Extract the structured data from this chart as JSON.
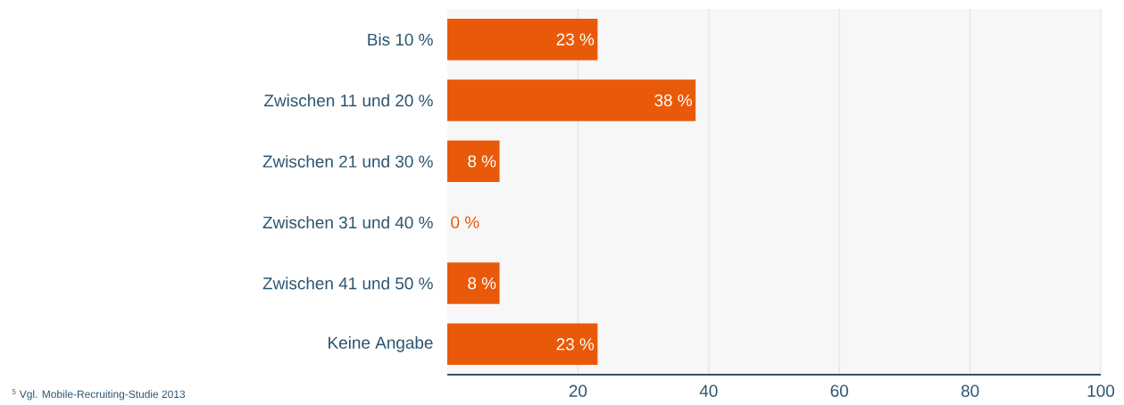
{
  "chart_data": {
    "type": "bar",
    "orientation": "horizontal",
    "categories": [
      "Bis 10 %",
      "Zwischen 11 und 20 %",
      "Zwischen 21 und 30 %",
      "Zwischen 31 und 40 %",
      "Zwischen 41 und 50 %",
      "Keine Angabe"
    ],
    "values": [
      23,
      38,
      8,
      0,
      8,
      23
    ],
    "value_labels": [
      "23 %",
      "38 %",
      "8 %",
      "0 %",
      "8 %",
      "23 %"
    ],
    "color": "#e85a0a",
    "xlim": [
      0,
      100
    ],
    "xticks": [
      20,
      40,
      60,
      80,
      100
    ],
    "grid": "x",
    "annotations": [
      "$^{5}$ Vgl. Mobile-Recruiting-Studie 2013"
    ]
  }
}
